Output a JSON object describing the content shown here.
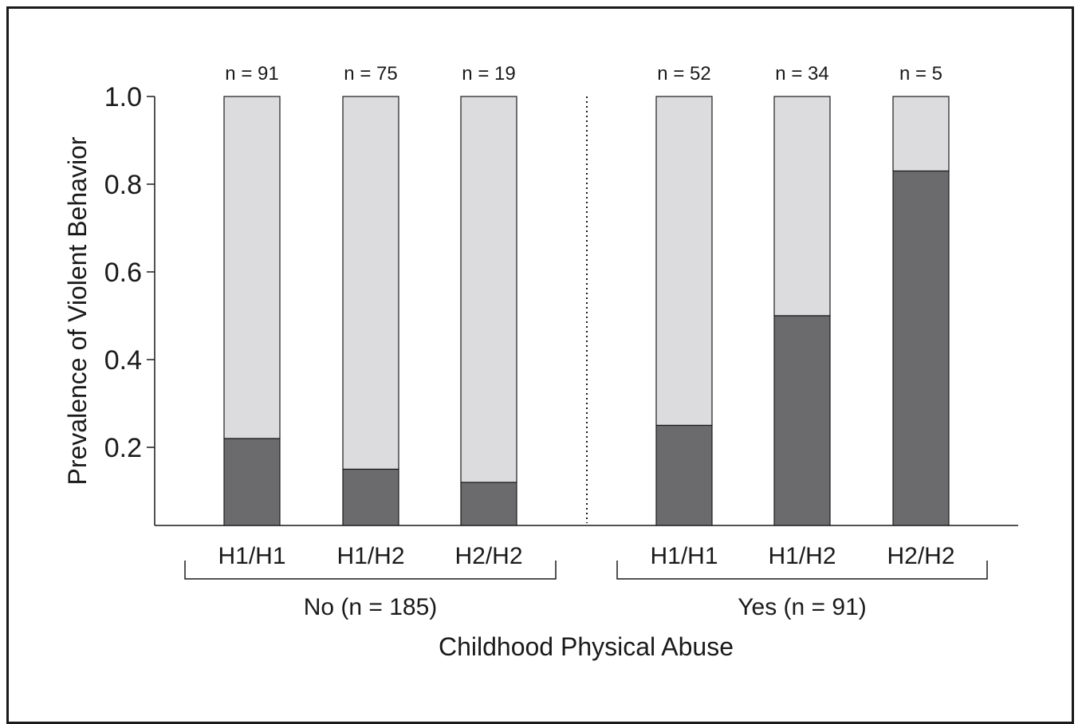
{
  "chart_data": {
    "type": "bar",
    "stacked": true,
    "title": "",
    "ylabel": "Prevalence of Violent Behavior",
    "xlabel": "Childhood Physical Abuse",
    "ylim": [
      0,
      1.0
    ],
    "yticks": [
      {
        "value": 0.2,
        "label": "0.2"
      },
      {
        "value": 0.4,
        "label": "0.4"
      },
      {
        "value": 0.6,
        "label": "0.6"
      },
      {
        "value": 0.8,
        "label": "0.8"
      },
      {
        "value": 1.0,
        "label": "1.0"
      }
    ],
    "grid": false,
    "legend": "none",
    "groups": [
      {
        "label": "No (n = 185)",
        "bars": [
          {
            "category": "H1/H1",
            "n_label": "n = 91",
            "value": 0.22
          },
          {
            "category": "H1/H2",
            "n_label": "n = 75",
            "value": 0.15
          },
          {
            "category": "H2/H2",
            "n_label": "n = 19",
            "value": 0.12
          }
        ]
      },
      {
        "label": "Yes (n = 91)",
        "bars": [
          {
            "category": "H1/H1",
            "n_label": "n = 52",
            "value": 0.25
          },
          {
            "category": "H1/H2",
            "n_label": "n = 34",
            "value": 0.5
          },
          {
            "category": "H2/H2",
            "n_label": "n = 5",
            "value": 0.83
          }
        ]
      }
    ],
    "colors": {
      "prevalence_fill": "#6b6b6d",
      "remainder_fill": "#dcdcde",
      "axis": "#1a1a1a"
    }
  }
}
